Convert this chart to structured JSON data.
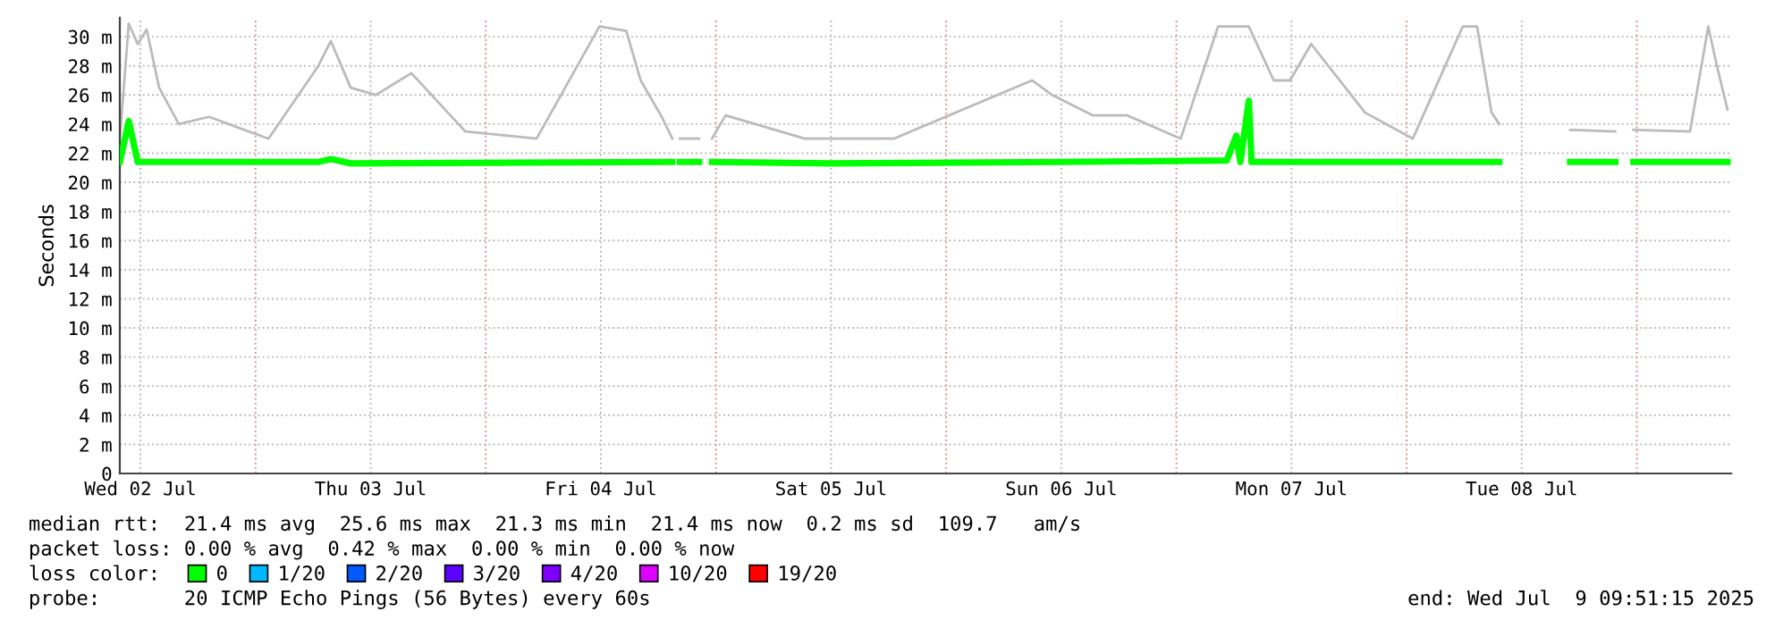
{
  "chart_data": {
    "type": "line",
    "ylabel": "Seconds",
    "x": [
      "2025-07-02T09:51",
      "2025-07-02T10:47",
      "2025-07-02T11:43",
      "2025-07-03T06:33",
      "2025-07-03T07:51",
      "2025-07-03T09:55",
      "2025-07-04T19:27",
      "2025-07-04T19:50",
      "2025-07-04T20:15",
      "2025-07-04T22:15",
      "2025-07-04T23:00",
      "2025-07-04T23:35",
      "2025-07-05T12:00",
      "2025-07-06T12:00",
      "2025-07-07T05:15",
      "2025-07-07T06:15",
      "2025-07-07T06:40",
      "2025-07-07T07:33",
      "2025-07-07T07:50",
      "2025-07-08T09:39",
      "2025-07-08T13:00",
      "2025-07-08T17:03",
      "2025-07-08T21:45",
      "2025-07-08T22:30",
      "2025-07-08T23:39",
      "2025-07-09T09:27"
    ],
    "series": [
      {
        "x": [
          "2025-07-02T09:51",
          "2025-07-02T10:47",
          "2025-07-02T11:43",
          "2025-07-02T12:39",
          "2025-07-02T13:57",
          "2025-07-02T16:00",
          "2025-07-02T19:09",
          "2025-07-03T01:21",
          "2025-07-03T06:33",
          "2025-07-03T07:51",
          "2025-07-03T09:55",
          "2025-07-03T12:33",
          "2025-07-03T16:15",
          "2025-07-03T21:51",
          "2025-07-04T05:18",
          "2025-07-04T11:51",
          "2025-07-04T14:39",
          "2025-07-04T16:09",
          "2025-07-04T18:21",
          "2025-07-04T19:27",
          "2025-07-04T19:50",
          "2025-07-04T20:15",
          "2025-07-04T22:15",
          "2025-07-04T23:00",
          "2025-07-04T23:35",
          "2025-07-05T01:00",
          "2025-07-05T09:15",
          "2025-07-05T18:33",
          "2025-07-06T08:57",
          "2025-07-06T11:03",
          "2025-07-06T15:15",
          "2025-07-06T18:51",
          "2025-07-07T00:27",
          "2025-07-07T04:21",
          "2025-07-07T05:15",
          "2025-07-07T07:33",
          "2025-07-07T10:09",
          "2025-07-07T11:51",
          "2025-07-07T14:03",
          "2025-07-07T19:39",
          "2025-07-08T00:39",
          "2025-07-08T05:51",
          "2025-07-08T07:21",
          "2025-07-08T08:51",
          "2025-07-08T09:39",
          "2025-07-08T13:00",
          "2025-07-08T17:03",
          "2025-07-08T21:45",
          "2025-07-08T22:30",
          "2025-07-08T23:39",
          "2025-07-09T05:33",
          "2025-07-09T07:27",
          "2025-07-09T08:21",
          "2025-07-09T09:27"
        ],
        "color": "#bbbbbb",
        "values": [
          23,
          30.9,
          29.5,
          30.5,
          26.5,
          24,
          24.5,
          23,
          28,
          29.7,
          26.5,
          26,
          27.5,
          23.5,
          23,
          30.7,
          30.4,
          27,
          24.5,
          23,
          null,
          23,
          23,
          null,
          23,
          24.6,
          23,
          23,
          27,
          26,
          24.6,
          24.6,
          23,
          30.7,
          30.7,
          30.7,
          27,
          27,
          29.5,
          24.8,
          23,
          30.7,
          30.7,
          24.8,
          24,
          null,
          23.6,
          23.5,
          null,
          23.6,
          23.5,
          30.7,
          28,
          25
        ]
      },
      {
        "name": "0",
        "color": "#00ff00",
        "values": [
          21.4,
          24.2,
          21.4,
          21.4,
          21.6,
          21.3,
          21.4,
          null,
          21.4,
          21.4,
          null,
          21.4,
          21.3,
          21.4,
          21.5,
          23.2,
          21.4,
          25.6,
          21.4,
          21.4,
          null,
          21.4,
          21.4,
          null,
          21.4,
          21.4
        ]
      },
      {
        "name": "1/20",
        "color": "#00b8ff",
        "values": [
          null,
          null,
          null,
          null,
          null,
          null,
          null,
          null,
          null,
          null,
          null,
          null,
          null,
          null,
          null,
          null,
          null,
          null,
          null,
          null,
          null,
          null,
          null,
          null,
          null,
          null
        ]
      },
      {
        "name": "2/20",
        "color": "#0059ff",
        "values": [
          null,
          null,
          null,
          null,
          null,
          null,
          null,
          null,
          null,
          null,
          null,
          null,
          null,
          null,
          null,
          null,
          null,
          null,
          null,
          null,
          null,
          null,
          null,
          null,
          null,
          null
        ]
      },
      {
        "name": "3/20",
        "color": "#5e00ff",
        "values": [
          null,
          null,
          null,
          null,
          null,
          null,
          null,
          null,
          null,
          null,
          null,
          null,
          null,
          null,
          null,
          null,
          null,
          null,
          null,
          null,
          null,
          null,
          null,
          null,
          null,
          null
        ]
      },
      {
        "name": "4/20",
        "color": "#7e00ff",
        "values": [
          null,
          null,
          null,
          null,
          null,
          null,
          null,
          null,
          null,
          null,
          null,
          null,
          null,
          null,
          null,
          null,
          null,
          null,
          null,
          null,
          null,
          null,
          null,
          null,
          null,
          null
        ]
      },
      {
        "name": "10/20",
        "color": "#dd00ff",
        "values": [
          null,
          null,
          null,
          null,
          null,
          null,
          null,
          null,
          null,
          null,
          null,
          null,
          null,
          null,
          null,
          null,
          null,
          null,
          null,
          null,
          null,
          null,
          null,
          null,
          null,
          null
        ]
      },
      {
        "name": "19/20",
        "color": "#ff0000",
        "values": [
          null,
          null,
          null,
          null,
          null,
          null,
          null,
          null,
          null,
          null,
          null,
          null,
          null,
          null,
          null,
          null,
          null,
          null,
          null,
          null,
          null,
          null,
          null,
          null,
          null,
          null
        ]
      }
    ],
    "xlim": [
      "2025-07-02T09:51",
      "2025-07-09T09:51"
    ],
    "xticks": [
      {
        "value": "2025-07-02T12:00",
        "label": "Wed 02 Jul"
      },
      {
        "value": "2025-07-03",
        "label": null
      },
      {
        "value": "2025-07-03T12:00",
        "label": "Thu 03 Jul"
      },
      {
        "value": "2025-07-04",
        "label": null
      },
      {
        "value": "2025-07-04T12:00",
        "label": "Fri 04 Jul"
      },
      {
        "value": "2025-07-05",
        "label": null
      },
      {
        "value": "2025-07-05T12:00",
        "label": "Sat 05 Jul"
      },
      {
        "value": "2025-07-06",
        "label": null
      },
      {
        "value": "2025-07-06T12:00",
        "label": "Sun 06 Jul"
      },
      {
        "value": "2025-07-07",
        "label": null
      },
      {
        "value": "2025-07-07T12:00",
        "label": "Mon 07 Jul"
      },
      {
        "value": "2025-07-08",
        "label": null
      },
      {
        "value": "2025-07-08T12:00",
        "label": "Tue 08 Jul"
      },
      {
        "value": "2025-07-09",
        "label": null
      }
    ],
    "ylim": [
      0,
      31.3
    ],
    "yticks": [
      0,
      {
        "value": 2,
        "label": "2 m"
      },
      {
        "value": 4,
        "label": "4 m"
      },
      {
        "value": 6,
        "label": "6 m"
      },
      {
        "value": 8,
        "label": "8 m"
      },
      {
        "value": 10,
        "label": "10 m"
      },
      {
        "value": 12,
        "label": "12 m"
      },
      {
        "value": 14,
        "label": "14 m"
      },
      {
        "value": 16,
        "label": "16 m"
      },
      {
        "value": 18,
        "label": "18 m"
      },
      {
        "value": 20,
        "label": "20 m"
      },
      {
        "value": 22,
        "label": "22 m"
      },
      {
        "value": 24,
        "label": "24 m"
      },
      {
        "value": 26,
        "label": "26 m"
      },
      {
        "value": 28,
        "label": "28 m"
      },
      {
        "value": 30,
        "label": "30 m"
      }
    ],
    "grid": true,
    "legend": "bottom",
    "legend_title": "loss color:",
    "annotations": [
      "median rtt:  21.4 ms avg  25.6 ms max  21.3 ms min  21.4 ms now  0.2 ms sd  109.7   am/s",
      "packet loss: 0.00 % avg  0.42 % max  0.00 % min  0.00 % now",
      "probe:       20 ICMP Echo Pings (56 Bytes) every 60s",
      "end: Wed Jul  9 09:51:15 2025"
    ]
  }
}
